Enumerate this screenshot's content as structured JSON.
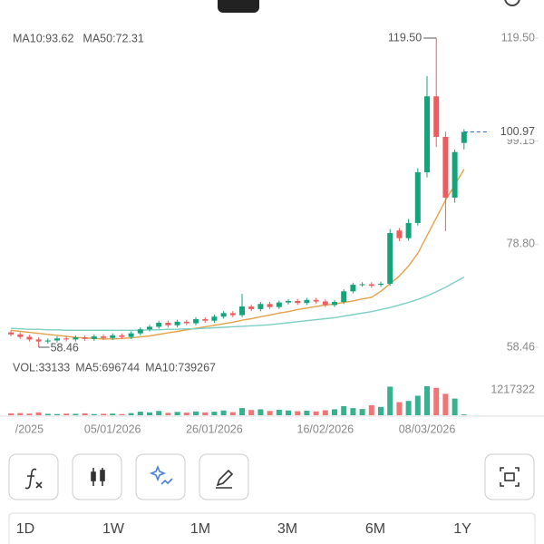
{
  "chart_data": {
    "type": "candlestick",
    "categories": [
      null,
      null,
      "/2025",
      null,
      null,
      null,
      null,
      null,
      null,
      null,
      null,
      "05/01/2026",
      null,
      null,
      null,
      null,
      null,
      null,
      null,
      null,
      null,
      null,
      "26/01/2026",
      null,
      null,
      null,
      null,
      null,
      null,
      null,
      null,
      null,
      null,
      null,
      "16/02/2026",
      null,
      null,
      null,
      null,
      null,
      null,
      null,
      null,
      null,
      null,
      "08/03/2026",
      null,
      null,
      null,
      null
    ],
    "open": [
      61.4,
      61.0,
      60.5,
      60.0,
      59.6,
      59.8,
      60.2,
      60.0,
      60.4,
      60.1,
      60.6,
      60.3,
      60.8,
      60.5,
      61.2,
      62.0,
      62.5,
      63.3,
      62.8,
      63.5,
      63.2,
      64.0,
      63.7,
      64.5,
      65.2,
      64.8,
      66.5,
      66.0,
      67.0,
      66.4,
      67.3,
      67.6,
      67.2,
      67.8,
      67.5,
      66.8,
      67.4,
      69.5,
      70.8,
      70.9,
      70.8,
      71.0,
      81.5,
      80.0,
      83.0,
      93.0,
      108.0,
      100.0,
      88.0,
      98.8
    ],
    "high": [
      61.8,
      61.4,
      60.9,
      60.4,
      60.2,
      60.6,
      60.6,
      60.8,
      60.8,
      61.0,
      61.0,
      61.2,
      61.2,
      61.6,
      62.4,
      62.9,
      63.7,
      63.7,
      63.9,
      63.9,
      64.4,
      64.4,
      64.9,
      65.6,
      65.6,
      69.0,
      66.9,
      67.4,
      67.4,
      67.7,
      68.0,
      68.0,
      68.2,
      68.2,
      67.9,
      67.8,
      69.9,
      71.2,
      71.3,
      71.3,
      71.4,
      81.8,
      82.0,
      83.8,
      93.8,
      112.0,
      119.5,
      101.0,
      97.5,
      101.5
    ],
    "low": [
      60.6,
      60.1,
      59.6,
      58.46,
      59.2,
      59.4,
      59.6,
      59.6,
      59.7,
      59.7,
      59.9,
      59.9,
      60.1,
      60.1,
      60.8,
      61.6,
      62.1,
      62.4,
      62.4,
      62.8,
      62.8,
      63.3,
      63.3,
      64.1,
      64.4,
      64.4,
      65.6,
      65.6,
      66.0,
      66.0,
      66.9,
      66.8,
      66.8,
      67.1,
      66.4,
      66.4,
      67.0,
      69.1,
      70.4,
      70.2,
      70.4,
      70.6,
      79.4,
      79.5,
      82.5,
      92.0,
      98.0,
      81.4,
      87.0,
      97.5
    ],
    "close": [
      61.0,
      60.5,
      60.0,
      59.6,
      59.8,
      60.2,
      60.0,
      60.4,
      60.1,
      60.6,
      60.3,
      60.8,
      60.5,
      61.2,
      62.0,
      62.5,
      63.3,
      62.8,
      63.5,
      63.2,
      64.0,
      63.7,
      64.5,
      65.2,
      64.8,
      66.5,
      66.0,
      67.0,
      66.4,
      67.3,
      67.6,
      67.2,
      67.8,
      67.5,
      66.8,
      67.4,
      69.5,
      70.8,
      70.9,
      70.6,
      71.0,
      81.0,
      80.0,
      83.0,
      93.0,
      108.0,
      100.0,
      88.0,
      97.0,
      100.97
    ],
    "up_color": "#14a37a",
    "down_color": "#ee5d5d",
    "ylim": [
      58.46,
      119.5
    ],
    "yticks": [
      58.46,
      {
        "value": 78.8,
        "label": "78.80"
      },
      99.15,
      {
        "value": 119.5,
        "label": "119.50"
      }
    ],
    "lines": [
      {
        "name": "MA10:93.62",
        "color": "#e3a24a",
        "values": [
          61.8,
          61.6,
          61.4,
          61.2,
          61.0,
          60.8,
          60.6,
          60.4,
          60.3,
          60.2,
          60.1,
          60.1,
          60.2,
          60.3,
          60.5,
          60.7,
          61.0,
          61.3,
          61.6,
          61.9,
          62.2,
          62.5,
          62.8,
          63.1,
          63.4,
          63.8,
          64.1,
          64.5,
          64.8,
          65.2,
          65.5,
          65.9,
          66.2,
          66.5,
          66.8,
          67.0,
          67.3,
          67.6,
          68.0,
          68.3,
          69.5,
          71.0,
          72.5,
          74.5,
          77.0,
          80.5,
          84.0,
          87.5,
          90.5,
          93.62
        ]
      },
      {
        "name": "MA50:72.31",
        "color": "#7ccfc3",
        "values": [
          62.2,
          62.1,
          62.0,
          62.0,
          61.9,
          61.9,
          61.8,
          61.8,
          61.8,
          61.8,
          61.8,
          61.8,
          61.8,
          61.8,
          61.8,
          61.9,
          61.9,
          62.0,
          62.0,
          62.1,
          62.1,
          62.2,
          62.3,
          62.4,
          62.5,
          62.6,
          62.7,
          62.8,
          62.9,
          63.1,
          63.3,
          63.5,
          63.7,
          63.9,
          64.1,
          64.3,
          64.6,
          64.9,
          65.2,
          65.5,
          65.9,
          66.3,
          66.8,
          67.3,
          67.9,
          68.6,
          69.4,
          70.3,
          71.3,
          72.31
        ]
      }
    ],
    "annotations": [
      {
        "value": 119.5,
        "label": "119.50"
      },
      {
        "value": 58.46,
        "label": "58.46"
      }
    ],
    "last_price": 100.97,
    "last_price_color": "#2f6fb5",
    "volume": {
      "name": "VOL:33133",
      "color": "#7a4fb5",
      "values": [
        80000,
        90000,
        70000,
        120000,
        60000,
        50000,
        70000,
        60000,
        80000,
        50000,
        60000,
        70000,
        50000,
        90000,
        150000,
        120000,
        180000,
        100000,
        140000,
        110000,
        160000,
        120000,
        150000,
        200000,
        130000,
        300000,
        220000,
        250000,
        180000,
        230000,
        200000,
        170000,
        190000,
        160000,
        210000,
        250000,
        380000,
        300000,
        260000,
        420000,
        350000,
        1200000,
        550000,
        600000,
        820000,
        1217322,
        1150000,
        900000,
        700000,
        33133
      ],
      "ylim": [
        0,
        1217322
      ],
      "yticks": [
        1217322
      ],
      "legend": [
        {
          "name": "MA5:696744",
          "color": "#e3a24a"
        },
        {
          "name": "MA10:739267",
          "color": "#5fbfb2"
        }
      ]
    }
  },
  "periods": [
    "1D",
    "1W",
    "1M",
    "3M",
    "6M",
    "1Y"
  ]
}
